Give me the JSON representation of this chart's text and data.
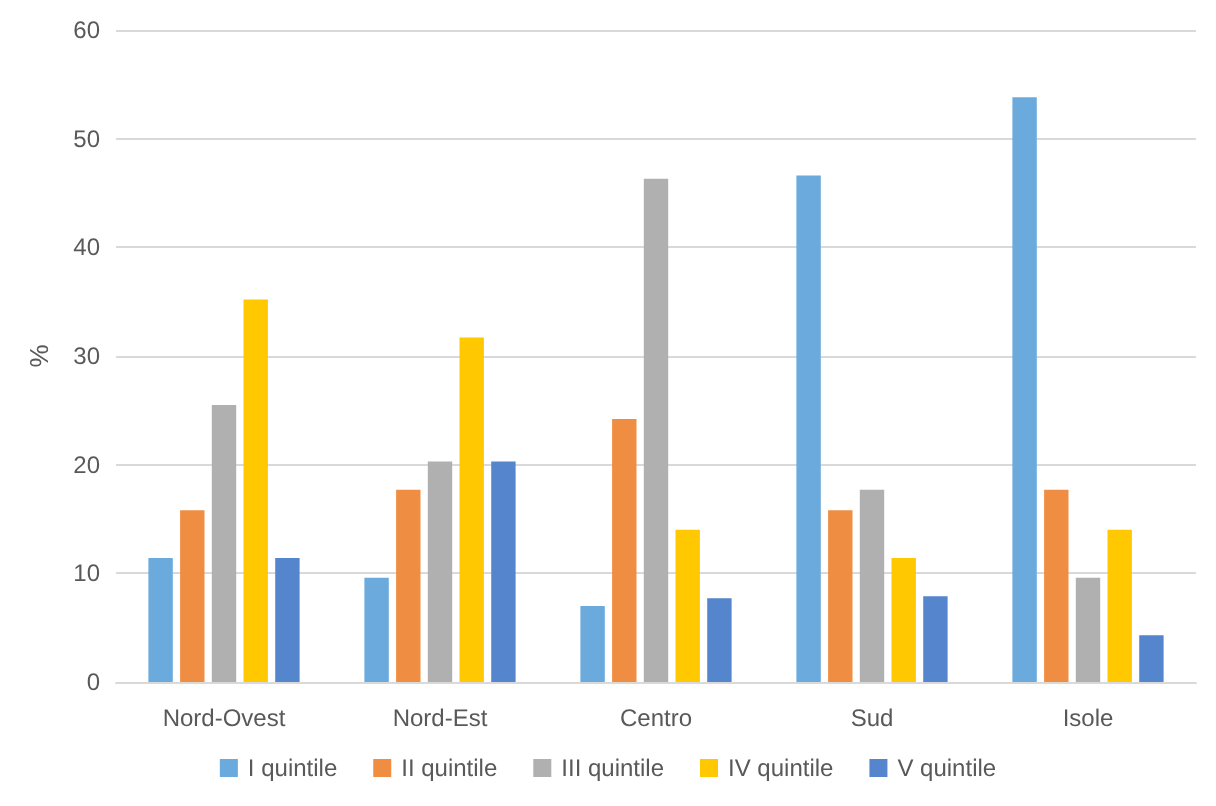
{
  "chart_data": {
    "type": "bar",
    "ylabel": "%",
    "categories": [
      "Nord-Ovest",
      "Nord-Est",
      "Centro",
      "Sud",
      "Isole"
    ],
    "series": [
      {
        "name": "I quintile",
        "color": "#6aaadd",
        "values": [
          11.4,
          9.6,
          7.0,
          46.6,
          53.8
        ]
      },
      {
        "name": "II quintile",
        "color": "#ef8e42",
        "values": [
          15.8,
          17.7,
          24.2,
          15.8,
          17.7
        ]
      },
      {
        "name": "III quintile",
        "color": "#b0b0b0",
        "values": [
          25.5,
          20.3,
          46.3,
          17.7,
          9.6
        ]
      },
      {
        "name": "IV quintile",
        "color": "#ffc800",
        "values": [
          35.2,
          31.7,
          14.0,
          11.4,
          14.0
        ]
      },
      {
        "name": "V quintile",
        "color": "#5585cc",
        "values": [
          11.4,
          20.3,
          7.7,
          7.9,
          4.3
        ]
      }
    ],
    "ylim": [
      0,
      60
    ],
    "yticks": [
      0,
      10,
      20,
      30,
      40,
      50,
      60
    ],
    "grid": "y",
    "legend": "bottom"
  }
}
